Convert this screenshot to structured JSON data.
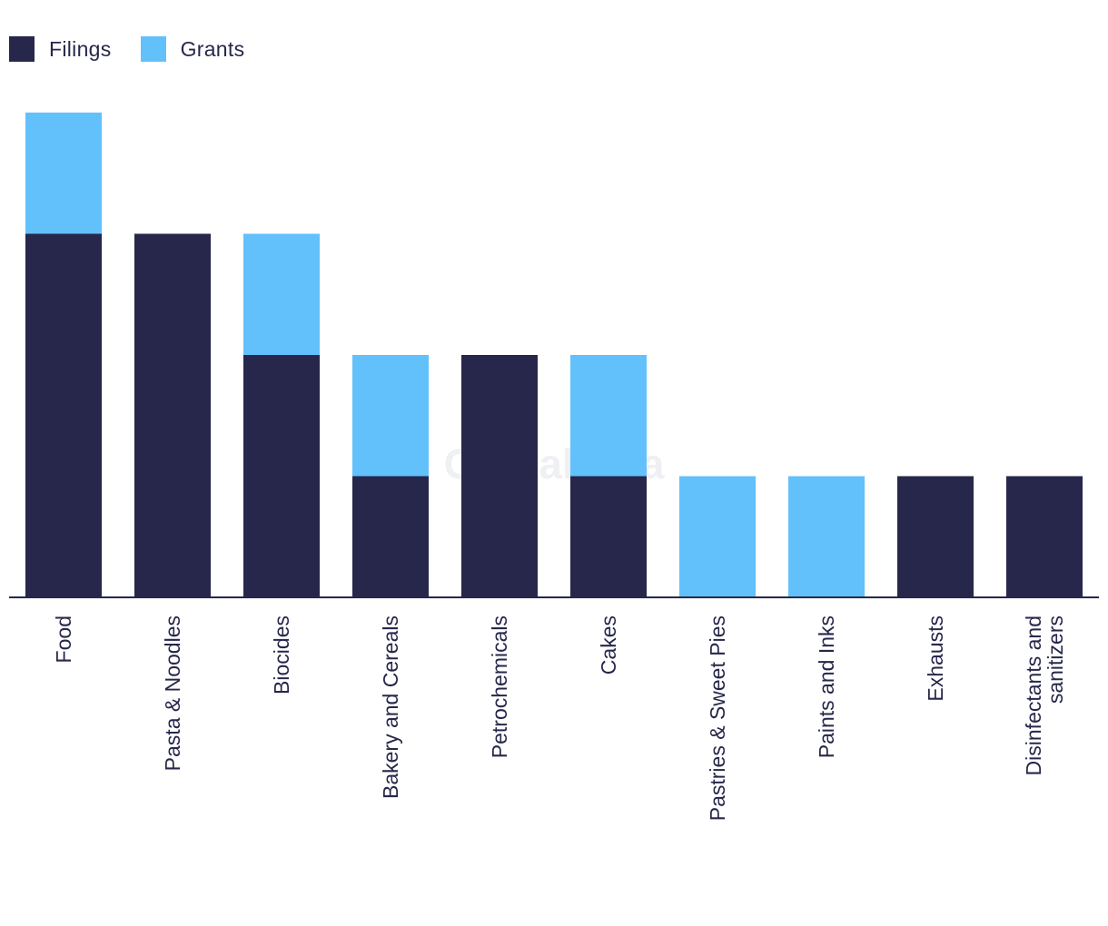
{
  "chart_data": {
    "type": "bar",
    "stacked": true,
    "categories": [
      "Food",
      "Pasta & Noodles",
      "Biocides",
      "Bakery and Cereals",
      "Petrochemicals",
      "Cakes",
      "Pastries & Sweet Pies",
      "Paints and Inks",
      "Exhausts",
      "Disinfectants and sanitizers"
    ],
    "series": [
      {
        "name": "Filings",
        "color": "#26274a",
        "values": [
          3,
          3,
          2,
          1,
          2,
          1,
          0,
          0,
          1,
          1
        ]
      },
      {
        "name": "Grants",
        "color": "#62c1fa",
        "values": [
          1,
          0,
          1,
          1,
          0,
          1,
          1,
          1,
          0,
          0
        ]
      }
    ],
    "ylim": [
      0,
      4
    ],
    "grid": false,
    "legend_position": "top-left",
    "watermark": "GlobalData"
  }
}
